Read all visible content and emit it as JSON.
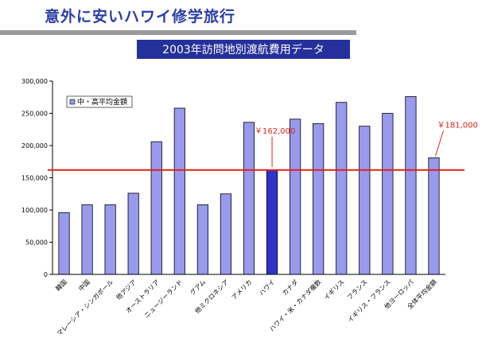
{
  "header": {
    "title": "意外に安いハワイ修学旅行",
    "subtitle": "2003年訪問地別渡航費用データ"
  },
  "colors": {
    "title": "#2a3da8",
    "subtitle_bg": "#26309a",
    "bar": "#9999ee",
    "bar_highlight": "#3333cc",
    "reference_line": "#e0201a",
    "annotation": "#e0201a"
  },
  "chart_data": {
    "type": "bar",
    "categories": [
      "韓国",
      "中国",
      "マレーシア・シンガポール",
      "他アジア",
      "オーストラリア",
      "ニュージーランド",
      "グアム",
      "他ミクロネシア",
      "アメリカ",
      "ハワイ",
      "カナダ",
      "ハワイ・米・カナダ複数",
      "イギリス",
      "フランス",
      "イギリス・フランス",
      "他ヨーロッパ",
      "全体平均金額"
    ],
    "series": [
      {
        "name": "中・高平均金額",
        "values": [
          96000,
          108000,
          108000,
          126000,
          206000,
          258000,
          108000,
          125000,
          236000,
          162000,
          241000,
          234000,
          267000,
          230000,
          250000,
          276000,
          181000
        ]
      }
    ],
    "highlight_category": "ハワイ",
    "reference_line": 162000,
    "annotations": [
      {
        "category": "ハワイ",
        "text": "￥162,000"
      },
      {
        "category": "全体平均金額",
        "text": "￥181,000"
      }
    ],
    "y_ticks": [
      "0",
      "50,000",
      "100,000",
      "150,000",
      "200,000",
      "250,000",
      "300,000"
    ],
    "ylim": [
      0,
      300000
    ],
    "legend": {
      "position": "top-left"
    },
    "grid": false
  }
}
